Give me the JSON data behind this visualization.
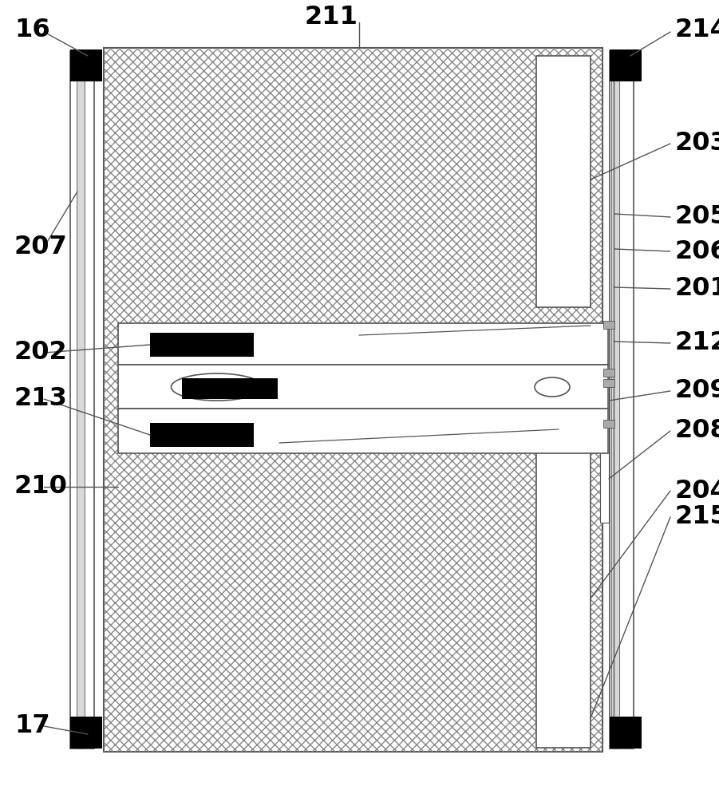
{
  "fig_width": 9.01,
  "fig_height": 10.0,
  "dpi": 100,
  "bg_color": "#ffffff",
  "lc": "#555555",
  "lc_thin": "#777777"
}
